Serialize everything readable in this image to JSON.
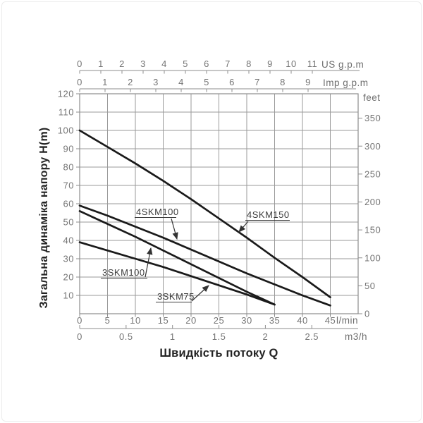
{
  "titles": {
    "y_axis": "Загальна динаміка напору H(m)",
    "x_axis": "Швидкість потоку Q"
  },
  "colors": {
    "background": "#ffffff",
    "grid": "#9a9a9a",
    "border": "#8c8c8c",
    "tick_text": "#757575",
    "unit_text": "#6e6e6e",
    "curve": "#1a1a1a",
    "curve_label_text": "#3d3d3d",
    "leader": "#333333",
    "title_text": "#232323"
  },
  "axes": {
    "us_gpm": {
      "label": "US g.p.m",
      "ticks": [
        0,
        1,
        2,
        3,
        4,
        5,
        6,
        7,
        8,
        9,
        10,
        11
      ]
    },
    "imp_gpm": {
      "label": "Imp g.p.m",
      "ticks": [
        0,
        1,
        2,
        3,
        4,
        5,
        6,
        7,
        8,
        9
      ]
    },
    "head_m": {
      "label": "H(m)",
      "ticks": [
        10,
        20,
        30,
        40,
        50,
        60,
        70,
        80,
        90,
        100,
        110,
        120
      ]
    },
    "feet": {
      "label": "feet",
      "ticks": [
        0,
        50,
        100,
        150,
        200,
        250,
        300,
        350
      ]
    },
    "l_min": {
      "label": "l/min",
      "ticks": [
        0,
        5,
        10,
        15,
        20,
        25,
        30,
        35,
        40,
        45
      ]
    },
    "m3_h": {
      "label": "m3/h",
      "ticks": [
        "0",
        "0.5",
        "1",
        "1.5",
        "2",
        "2.5"
      ]
    }
  },
  "chart_data": {
    "type": "line",
    "title": "",
    "xlabel": "Швидкість потоку Q",
    "ylabel": "Загальна динаміка напору H(m)",
    "x_axis_units": [
      "US g.p.m",
      "Imp g.p.m",
      "l/min",
      "m3/h"
    ],
    "y_axis_units": [
      "m",
      "feet"
    ],
    "xlim_l_min": [
      0,
      50
    ],
    "ylim_m": [
      0,
      120
    ],
    "ylim_feet": [
      0,
      350
    ],
    "grid": true,
    "legend_position": "inline-labels-with-arrows",
    "series": [
      {
        "name": "4SKM150",
        "points_l_min_m": [
          [
            0,
            100
          ],
          [
            5,
            91
          ],
          [
            10,
            82
          ],
          [
            15,
            72.5
          ],
          [
            20,
            62.5
          ],
          [
            25,
            52
          ],
          [
            30,
            41.5
          ],
          [
            35,
            30.5
          ],
          [
            40,
            20
          ],
          [
            45,
            9
          ]
        ]
      },
      {
        "name": "4SKM100",
        "points_l_min_m": [
          [
            0,
            59
          ],
          [
            5,
            53.5
          ],
          [
            10,
            47.5
          ],
          [
            15,
            41.5
          ],
          [
            20,
            35
          ],
          [
            25,
            28.5
          ],
          [
            30,
            22
          ],
          [
            35,
            16
          ],
          [
            40,
            10
          ],
          [
            45,
            4.5
          ]
        ]
      },
      {
        "name": "3SKM100",
        "points_l_min_m": [
          [
            0,
            56
          ],
          [
            5,
            49
          ],
          [
            10,
            42
          ],
          [
            15,
            34.5
          ],
          [
            20,
            27
          ],
          [
            25,
            19.5
          ],
          [
            30,
            12
          ],
          [
            35,
            5
          ]
        ]
      },
      {
        "name": "3SKM75",
        "points_l_min_m": [
          [
            0,
            39
          ],
          [
            5,
            34.5
          ],
          [
            10,
            30
          ],
          [
            15,
            25.5
          ],
          [
            20,
            20.5
          ],
          [
            25,
            15.5
          ],
          [
            30,
            10.5
          ],
          [
            35,
            5
          ]
        ]
      }
    ]
  }
}
